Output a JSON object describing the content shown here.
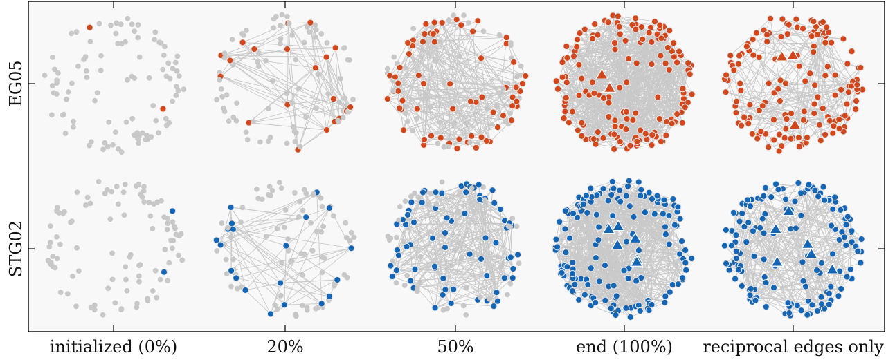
{
  "row_labels": [
    "EG05",
    "STG02"
  ],
  "column_labels": [
    "initialized (0%)",
    "20%",
    "50%",
    "end (100%)",
    "reciprocal edges only"
  ],
  "colors": {
    "inactive_node": "#c8c8c8",
    "edge": "#c9c9c9",
    "row_accent": [
      "#d2481c",
      "#1565b5"
    ],
    "node_outline": "#e6e6e6",
    "panel_background": "#f8f8f8"
  },
  "legend_semantics": {
    "circle": "node",
    "triangle": "highlighted node",
    "grey": "inactive node",
    "colored": "active node"
  },
  "panels": [
    {
      "row": 0,
      "col": 0,
      "active_fraction": 0.02,
      "edge_count": 0,
      "triangles": 0
    },
    {
      "row": 0,
      "col": 1,
      "active_fraction": 0.2,
      "edge_count": 90,
      "triangles": 0
    },
    {
      "row": 0,
      "col": 2,
      "active_fraction": 0.55,
      "edge_count": 260,
      "triangles": 0
    },
    {
      "row": 0,
      "col": 3,
      "active_fraction": 1.0,
      "edge_count": 650,
      "triangles": 2
    },
    {
      "row": 0,
      "col": 4,
      "active_fraction": 1.0,
      "edge_count": 170,
      "triangles": 3
    },
    {
      "row": 1,
      "col": 0,
      "active_fraction": 0.02,
      "edge_count": 0,
      "triangles": 0
    },
    {
      "row": 1,
      "col": 1,
      "active_fraction": 0.2,
      "edge_count": 60,
      "triangles": 0
    },
    {
      "row": 1,
      "col": 2,
      "active_fraction": 0.6,
      "edge_count": 280,
      "triangles": 0
    },
    {
      "row": 1,
      "col": 3,
      "active_fraction": 1.0,
      "edge_count": 620,
      "triangles": 6
    },
    {
      "row": 1,
      "col": 4,
      "active_fraction": 1.0,
      "edge_count": 260,
      "triangles": 6
    }
  ]
}
